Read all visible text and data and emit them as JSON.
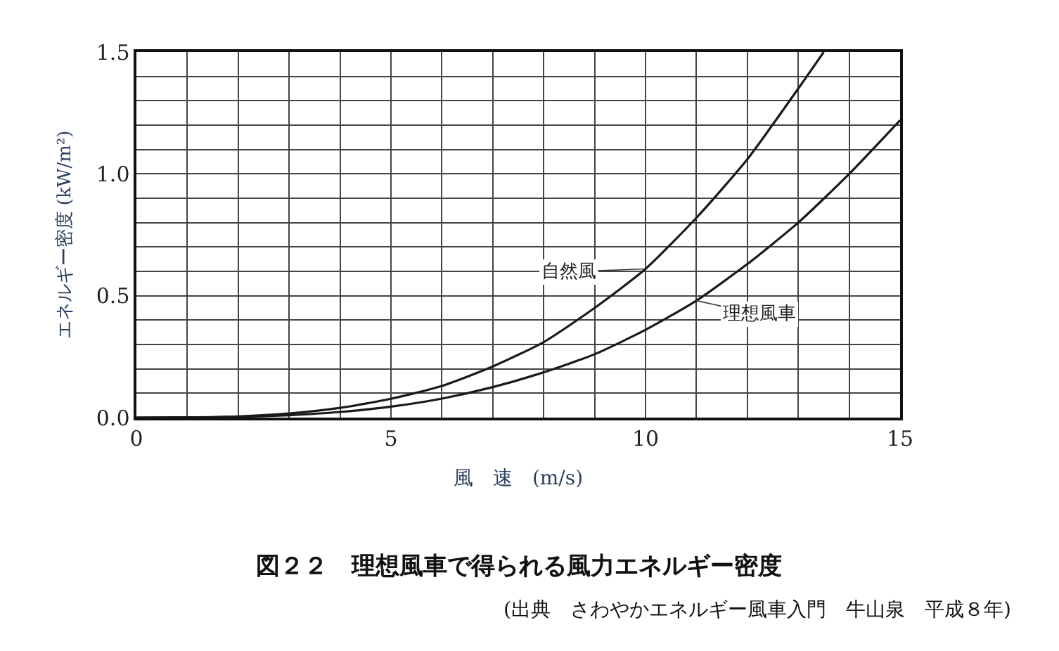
{
  "chart_data": {
    "type": "line",
    "title": "図２２　理想風車で得られる風力エネルギー密度",
    "xlabel": "風　速　(m/s)",
    "ylabel": "エネルギー密度 (kW/m²)",
    "annotations": [
      "(出典　さわやかエネルギー風車入門　牛山泉　平成８年)"
    ],
    "series": [
      {
        "name": "自然風",
        "color": "#1a1a1a",
        "x": [
          0,
          1,
          2,
          3,
          4,
          5,
          6,
          7,
          8,
          9,
          10,
          11,
          12,
          13,
          13.5
        ],
        "values": [
          0,
          0.001,
          0.005,
          0.017,
          0.04,
          0.077,
          0.13,
          0.21,
          0.31,
          0.45,
          0.61,
          0.82,
          1.06,
          1.35,
          1.5
        ]
      },
      {
        "name": "理想風車",
        "color": "#1a1a1a",
        "x": [
          0,
          1,
          2,
          3,
          4,
          5,
          6,
          7,
          8,
          9,
          10,
          11,
          12,
          13,
          14,
          15
        ],
        "values": [
          0,
          0.0004,
          0.003,
          0.01,
          0.023,
          0.045,
          0.078,
          0.125,
          0.186,
          0.26,
          0.36,
          0.48,
          0.63,
          0.8,
          1.0,
          1.22
        ]
      }
    ],
    "xlim": [
      0,
      15
    ],
    "ylim": [
      0,
      1.5
    ],
    "xticks": [
      0,
      {
        "value": 1,
        "label": null
      },
      {
        "value": 2,
        "label": null
      },
      {
        "value": 3,
        "label": null
      },
      {
        "value": 4,
        "label": null
      },
      5,
      {
        "value": 6,
        "label": null
      },
      {
        "value": 7,
        "label": null
      },
      {
        "value": 8,
        "label": null
      },
      {
        "value": 9,
        "label": null
      },
      10,
      {
        "value": 11,
        "label": null
      },
      {
        "value": 12,
        "label": null
      },
      {
        "value": 13,
        "label": null
      },
      {
        "value": 14,
        "label": null
      },
      15
    ],
    "yticks": [
      {
        "value": 0,
        "label": "0.0"
      },
      {
        "value": 0.1,
        "label": null
      },
      {
        "value": 0.2,
        "label": null
      },
      {
        "value": 0.3,
        "label": null
      },
      {
        "value": 0.4,
        "label": null
      },
      {
        "value": 0.5,
        "label": "0.5"
      },
      {
        "value": 0.6,
        "label": null
      },
      {
        "value": 0.7,
        "label": null
      },
      {
        "value": 0.8,
        "label": null
      },
      {
        "value": 0.9,
        "label": null
      },
      {
        "value": 1.0,
        "label": "1.0"
      },
      {
        "value": 1.1,
        "label": null
      },
      {
        "value": 1.2,
        "label": null
      },
      {
        "value": 1.3,
        "label": null
      },
      {
        "value": 1.4,
        "label": null
      },
      {
        "value": 1.5,
        "label": "1.5"
      }
    ],
    "grid": true,
    "legend": false,
    "marker": "none",
    "line_style": "solid"
  }
}
